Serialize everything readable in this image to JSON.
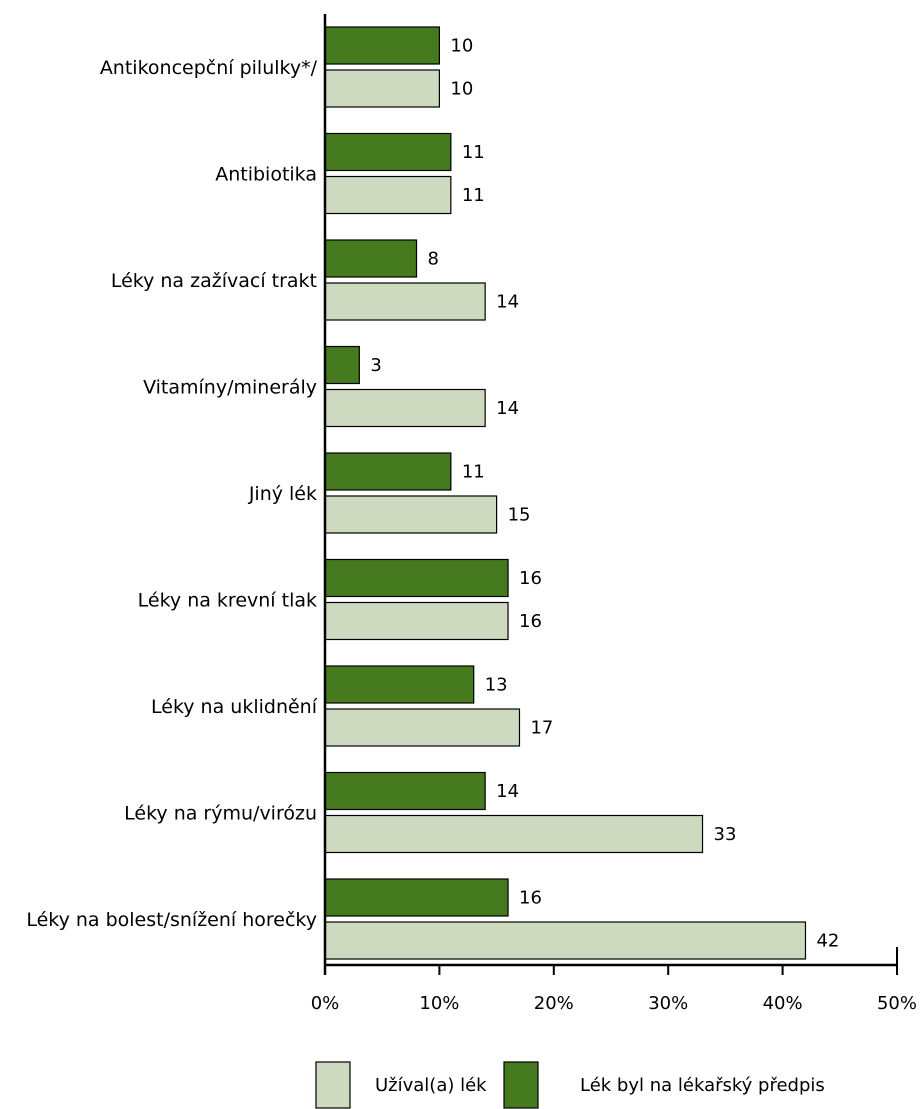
{
  "chart_data": {
    "type": "bar",
    "orientation": "horizontal",
    "categories": [
      "Antikoncepční pilulky*/",
      "Antibiotika",
      "Léky na zažívací trakt",
      "Vitamíny/minerály",
      "Jiný lék",
      "Léky na krevní tlak",
      "Léky na uklidnění",
      "Léky na rýmu/virózu",
      "Léky na bolest/snížení horečky"
    ],
    "series": [
      {
        "name": "Lék byl na lékařský předpis",
        "color": "#467a1f",
        "values": [
          10,
          11,
          8,
          3,
          11,
          16,
          13,
          14,
          16
        ]
      },
      {
        "name": "Užíval(a) lék",
        "color": "#cddabf",
        "values": [
          10,
          11,
          14,
          14,
          15,
          16,
          17,
          33,
          42
        ]
      }
    ],
    "xlim": [
      0,
      50
    ],
    "xticks": [
      "0%",
      "10%",
      "20%",
      "30%",
      "40%",
      "50%"
    ],
    "legend_order": [
      "Užíval(a) lék",
      "Lék byl na lékařský předpis"
    ],
    "legend_position": "bottom",
    "grid": false
  }
}
